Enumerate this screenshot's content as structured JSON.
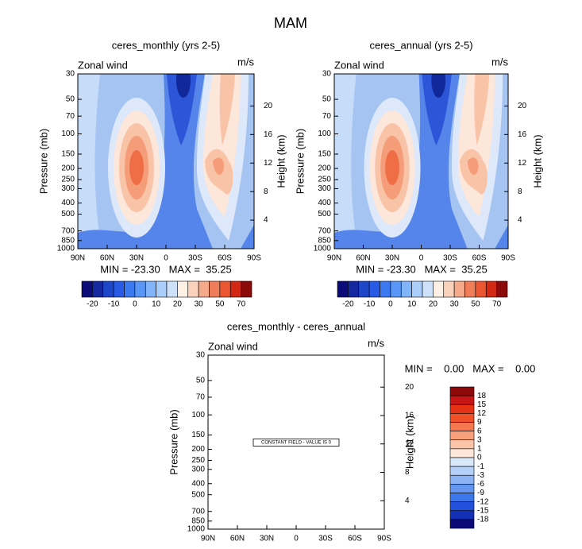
{
  "title": "MAM",
  "chart_data": [
    {
      "type": "contour",
      "title": "ceres_monthly (yrs 2-5)",
      "left_label": "Zonal wind",
      "units": "m/s",
      "ylabel": "Pressure (mb)",
      "y2label": "Height (km)",
      "stats": "MIN = -23.30   MAX =  35.25",
      "xlim": [
        90,
        -90
      ],
      "xticks": [
        {
          "value": 90,
          "label": "90N"
        },
        {
          "value": 60,
          "label": "60N"
        },
        {
          "value": 30,
          "label": "30N"
        },
        0,
        {
          "value": -30,
          "label": "30S"
        },
        {
          "value": -60,
          "label": "60S"
        },
        {
          "value": -90,
          "label": "90S"
        }
      ],
      "ylim": [
        1000,
        30
      ],
      "ylog": true,
      "yticks": [
        30,
        50,
        70,
        100,
        150,
        200,
        250,
        300,
        400,
        500,
        700,
        850,
        1000
      ],
      "y2lim": [
        0,
        24.5
      ],
      "y2ticks": [
        4,
        8,
        12,
        16,
        20
      ],
      "colorbar": {
        "orientation": "horizontal",
        "colors": [
          "#0a0a78",
          "#1428a0",
          "#1e46c8",
          "#285ae6",
          "#3c78f0",
          "#5a96f5",
          "#82b4fa",
          "#aacdfa",
          "#cde1fa",
          "#fff0e6",
          "#fad2bc",
          "#f5aa8c",
          "#f07d5a",
          "#eb5532",
          "#d22814",
          "#8c0a0a"
        ],
        "labels": [
          -20,
          -10,
          0,
          10,
          20,
          30,
          50,
          70
        ]
      }
    },
    {
      "type": "contour",
      "title": "ceres_annual (yrs 2-5)",
      "left_label": "Zonal wind",
      "units": "m/s",
      "ylabel": "Pressure (mb)",
      "y2label": "Height (km)",
      "stats": "MIN = -23.30   MAX =  35.25",
      "xlim": [
        90,
        -90
      ],
      "xticks": [
        {
          "value": 90,
          "label": "90N"
        },
        {
          "value": 60,
          "label": "60N"
        },
        {
          "value": 30,
          "label": "30N"
        },
        0,
        {
          "value": -30,
          "label": "30S"
        },
        {
          "value": -60,
          "label": "60S"
        },
        {
          "value": -90,
          "label": "90S"
        }
      ],
      "ylim": [
        1000,
        30
      ],
      "ylog": true,
      "yticks": [
        30,
        50,
        70,
        100,
        150,
        200,
        250,
        300,
        400,
        500,
        700,
        850,
        1000
      ],
      "y2lim": [
        0,
        24.5
      ],
      "y2ticks": [
        4,
        8,
        12,
        16,
        20
      ],
      "colorbar": {
        "orientation": "horizontal",
        "colors": [
          "#0a0a78",
          "#1428a0",
          "#1e46c8",
          "#285ae6",
          "#3c78f0",
          "#5a96f5",
          "#82b4fa",
          "#aacdfa",
          "#cde1fa",
          "#fff0e6",
          "#fad2bc",
          "#f5aa8c",
          "#f07d5a",
          "#eb5532",
          "#d22814",
          "#8c0a0a"
        ],
        "labels": [
          -20,
          -10,
          0,
          10,
          20,
          30,
          50,
          70
        ]
      }
    },
    {
      "type": "contour",
      "title": "ceres_monthly - ceres_annual",
      "left_label": "Zonal wind",
      "units": "m/s",
      "ylabel": "Pressure (mb)",
      "y2label": "Height (km)",
      "stats": "MIN =    0.00   MAX =    0.00",
      "annotation": "CONSTANT FIELD - VALUE IS 0",
      "xlim": [
        90,
        -90
      ],
      "xticks": [
        {
          "value": 90,
          "label": "90N"
        },
        {
          "value": 60,
          "label": "60N"
        },
        {
          "value": 30,
          "label": "30N"
        },
        0,
        {
          "value": -30,
          "label": "30S"
        },
        {
          "value": -60,
          "label": "60S"
        },
        {
          "value": -90,
          "label": "90S"
        }
      ],
      "ylim": [
        1000,
        30
      ],
      "ylog": true,
      "yticks": [
        30,
        50,
        70,
        100,
        150,
        200,
        250,
        300,
        400,
        500,
        700,
        850,
        1000
      ],
      "y2lim": [
        0,
        24.5
      ],
      "y2ticks": [
        4,
        8,
        12,
        16,
        20
      ],
      "colorbar": {
        "orientation": "vertical",
        "colors": [
          "#8c0a0a",
          "#c81414",
          "#e63214",
          "#f05028",
          "#f57850",
          "#f8a07c",
          "#fbc4a8",
          "#fee6d8",
          "#d8e8fa",
          "#b4d0f8",
          "#8cb4f5",
          "#6496f0",
          "#3c78eb",
          "#2350dc",
          "#1430b4",
          "#0a0a78"
        ],
        "labels": [
          18,
          15,
          12,
          9,
          6,
          3,
          1,
          0,
          -1,
          -3,
          -6,
          -9,
          -12,
          -15,
          -18
        ]
      }
    }
  ]
}
